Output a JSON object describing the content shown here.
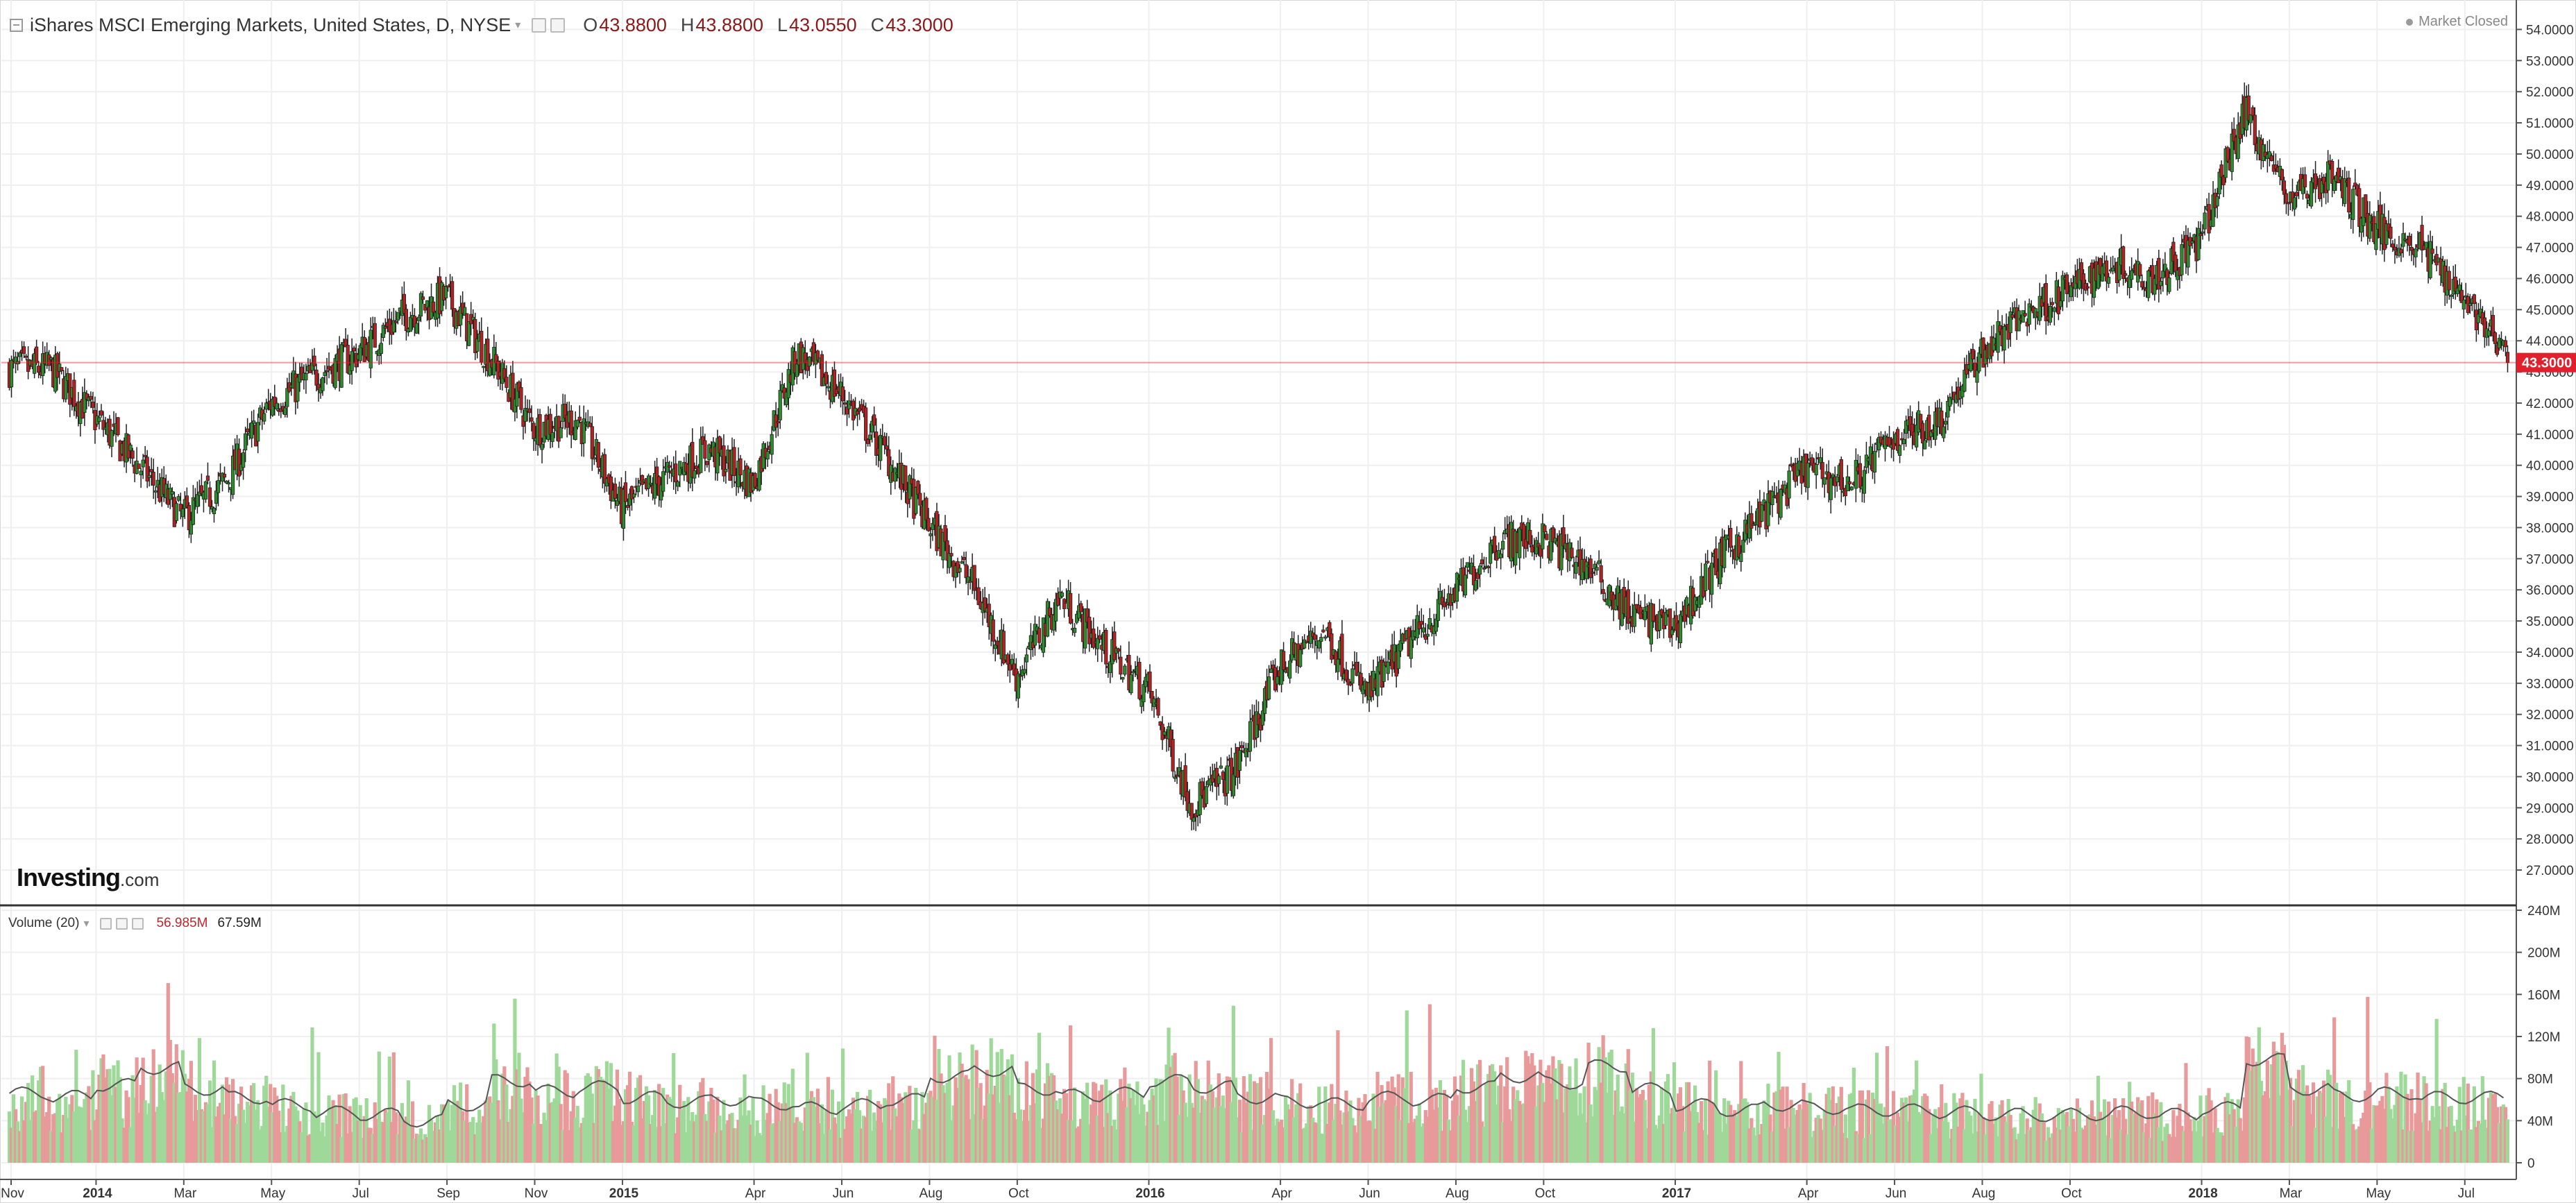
{
  "instrument": {
    "title": "iShares MSCI Emerging Markets, United States, D, NYSE",
    "open_label": "O",
    "open": "43.8800",
    "high_label": "H",
    "high": "43.8800",
    "low_label": "L",
    "low": "43.0550",
    "close_label": "C",
    "close": "43.3000"
  },
  "status": {
    "market": "Market Closed"
  },
  "volume_panel": {
    "title": "Volume (20)",
    "value_1": "56.985M",
    "value_2": "67.59M"
  },
  "watermark": {
    "brand": "Investing",
    "suffix": ".com"
  },
  "last_price_label": "43.3000",
  "colors": {
    "up": "#2e8b2e",
    "down": "#b22222",
    "vol_up": "#9fd99a",
    "vol_down": "#e89a9a",
    "last_price": "#e0202a",
    "grid": "#efefef"
  },
  "chart_data": [
    {
      "type": "candlestick",
      "title": "iShares MSCI Emerging Markets, United States, D, NYSE",
      "x_tick_labels": [
        "Nov",
        "2014",
        "Mar",
        "May",
        "Jul",
        "Sep",
        "Nov",
        "2015",
        "Apr",
        "Jun",
        "Aug",
        "Oct",
        "2016",
        "Apr",
        "Jun",
        "Aug",
        "Oct",
        "2017",
        "Apr",
        "Jun",
        "Aug",
        "Oct",
        "2018",
        "Mar",
        "May",
        "Jul"
      ],
      "y_tick_labels": [
        "27.0000",
        "28.0000",
        "29.0000",
        "30.0000",
        "31.0000",
        "32.0000",
        "33.0000",
        "34.0000",
        "35.0000",
        "36.0000",
        "37.0000",
        "38.0000",
        "39.0000",
        "40.0000",
        "41.0000",
        "42.0000",
        "43.0000",
        "44.0000",
        "45.0000",
        "46.0000",
        "47.0000",
        "48.0000",
        "49.0000",
        "50.0000",
        "51.0000",
        "52.0000",
        "53.0000",
        "54.0000"
      ],
      "ylim": [
        26.2,
        54.5
      ],
      "last_price": 43.3,
      "series": [
        {
          "name": "",
          "x": [
            "2013-11",
            "2013-12",
            "2014-01",
            "2014-02",
            "2014-03",
            "2014-04",
            "2014-05",
            "2014-06",
            "2014-07",
            "2014-08",
            "2014-09",
            "2014-10",
            "2014-11",
            "2014-12",
            "2015-01",
            "2015-02",
            "2015-03",
            "2015-04",
            "2015-05",
            "2015-06",
            "2015-07",
            "2015-08",
            "2015-09",
            "2015-10",
            "2015-11",
            "2015-12",
            "2016-01",
            "2016-02",
            "2016-03",
            "2016-04",
            "2016-05",
            "2016-06",
            "2016-07",
            "2016-08",
            "2016-09",
            "2016-10",
            "2016-11",
            "2016-12",
            "2017-01",
            "2017-02",
            "2017-03",
            "2017-04",
            "2017-05",
            "2017-06",
            "2017-07",
            "2017-08",
            "2017-09",
            "2017-10",
            "2017-11",
            "2017-12",
            "2018-01",
            "2018-02",
            "2018-03",
            "2018-04",
            "2018-05",
            "2018-06",
            "2018-07"
          ],
          "values": [
            43.1,
            41.5,
            40.0,
            38.3,
            39.5,
            42.0,
            42.9,
            43.6,
            44.8,
            45.4,
            43.5,
            41.2,
            41.5,
            38.6,
            39.6,
            40.5,
            39.4,
            43.6,
            42.3,
            40.4,
            38.1,
            36.2,
            33.2,
            35.8,
            34.1,
            32.8,
            29.1,
            30.2,
            33.5,
            34.7,
            32.6,
            34.4,
            35.9,
            37.6,
            37.6,
            36.8,
            35.2,
            34.8,
            36.9,
            38.4,
            39.9,
            39.4,
            40.9,
            41.4,
            43.6,
            44.9,
            45.6,
            46.5,
            46.1,
            47.2,
            51.4,
            48.6,
            49.3,
            47.6,
            47.0,
            45.5,
            43.3
          ]
        }
      ]
    },
    {
      "type": "bar",
      "title": "Volume (20)",
      "y_tick_labels": [
        "0",
        "40M",
        "80M",
        "120M",
        "160M",
        "200M",
        "240M"
      ],
      "ylim": [
        0,
        240
      ],
      "series": [
        {
          "name": "",
          "x": [
            "2013-11",
            "2013-12",
            "2014-01",
            "2014-02",
            "2014-03",
            "2014-04",
            "2014-05",
            "2014-06",
            "2014-07",
            "2014-08",
            "2014-09",
            "2014-10",
            "2014-11",
            "2014-12",
            "2015-01",
            "2015-02",
            "2015-03",
            "2015-04",
            "2015-05",
            "2015-06",
            "2015-07",
            "2015-08",
            "2015-09",
            "2015-10",
            "2015-11",
            "2015-12",
            "2016-01",
            "2016-02",
            "2016-03",
            "2016-04",
            "2016-05",
            "2016-06",
            "2016-07",
            "2016-08",
            "2016-09",
            "2016-10",
            "2016-11",
            "2016-12",
            "2017-01",
            "2017-02",
            "2017-03",
            "2017-04",
            "2017-05",
            "2017-06",
            "2017-07",
            "2017-08",
            "2017-09",
            "2017-10",
            "2017-11",
            "2017-12",
            "2018-01",
            "2018-02",
            "2018-03",
            "2018-04",
            "2018-05",
            "2018-06",
            "2018-07"
          ],
          "values": [
            66,
            63,
            74,
            90,
            70,
            62,
            55,
            48,
            46,
            40,
            55,
            78,
            68,
            72,
            62,
            58,
            60,
            56,
            52,
            55,
            60,
            82,
            88,
            70,
            64,
            66,
            78,
            72,
            62,
            58,
            56,
            62,
            60,
            72,
            82,
            76,
            92,
            70,
            55,
            50,
            55,
            52,
            50,
            50,
            48,
            46,
            45,
            46,
            48,
            46,
            52,
            98,
            70,
            64,
            66,
            62,
            62
          ]
        }
      ]
    }
  ]
}
